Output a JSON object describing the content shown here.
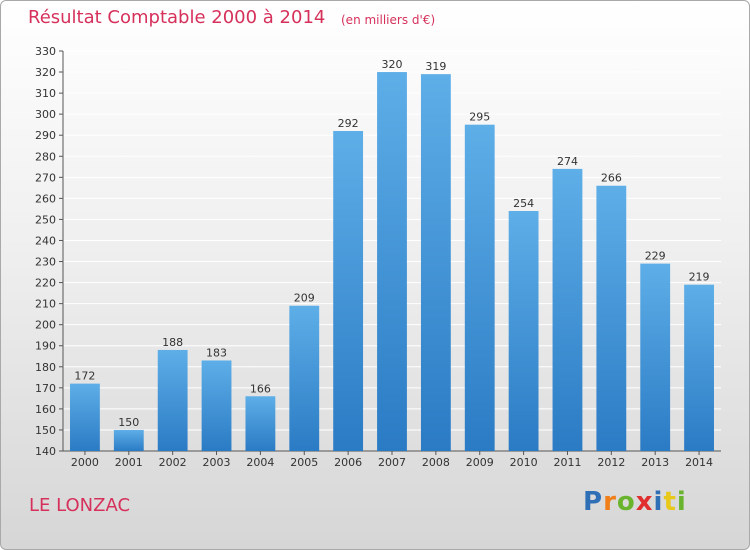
{
  "chart_data": {
    "type": "bar",
    "title": "Résultat Comptable 2000 à 2014",
    "subtitle": "(en milliers d'€)",
    "categories": [
      "2000",
      "2001",
      "2002",
      "2003",
      "2004",
      "2005",
      "2006",
      "2007",
      "2008",
      "2009",
      "2010",
      "2011",
      "2012",
      "2013",
      "2014"
    ],
    "values": [
      172,
      150,
      188,
      183,
      166,
      209,
      292,
      320,
      319,
      295,
      254,
      274,
      266,
      229,
      219
    ],
    "ylim": [
      140,
      330
    ],
    "ytick_step": 10,
    "xlabel": "",
    "ylabel": "",
    "grid": true
  },
  "footer": {
    "location": "LE LONZAC",
    "logo_letters": [
      "P",
      "r",
      "o",
      "x",
      "i",
      "t",
      "i"
    ]
  },
  "colors": {
    "bar_top": "#5eaee8",
    "bar_bottom": "#2a7bc4",
    "title": "#d6315b",
    "grid": "#ffffff",
    "logo": [
      "#2f6fb6",
      "#f07f1a",
      "#6ab42d",
      "#e02e2e",
      "#2f6fb6",
      "#e8c81a",
      "#6ab42d"
    ]
  }
}
